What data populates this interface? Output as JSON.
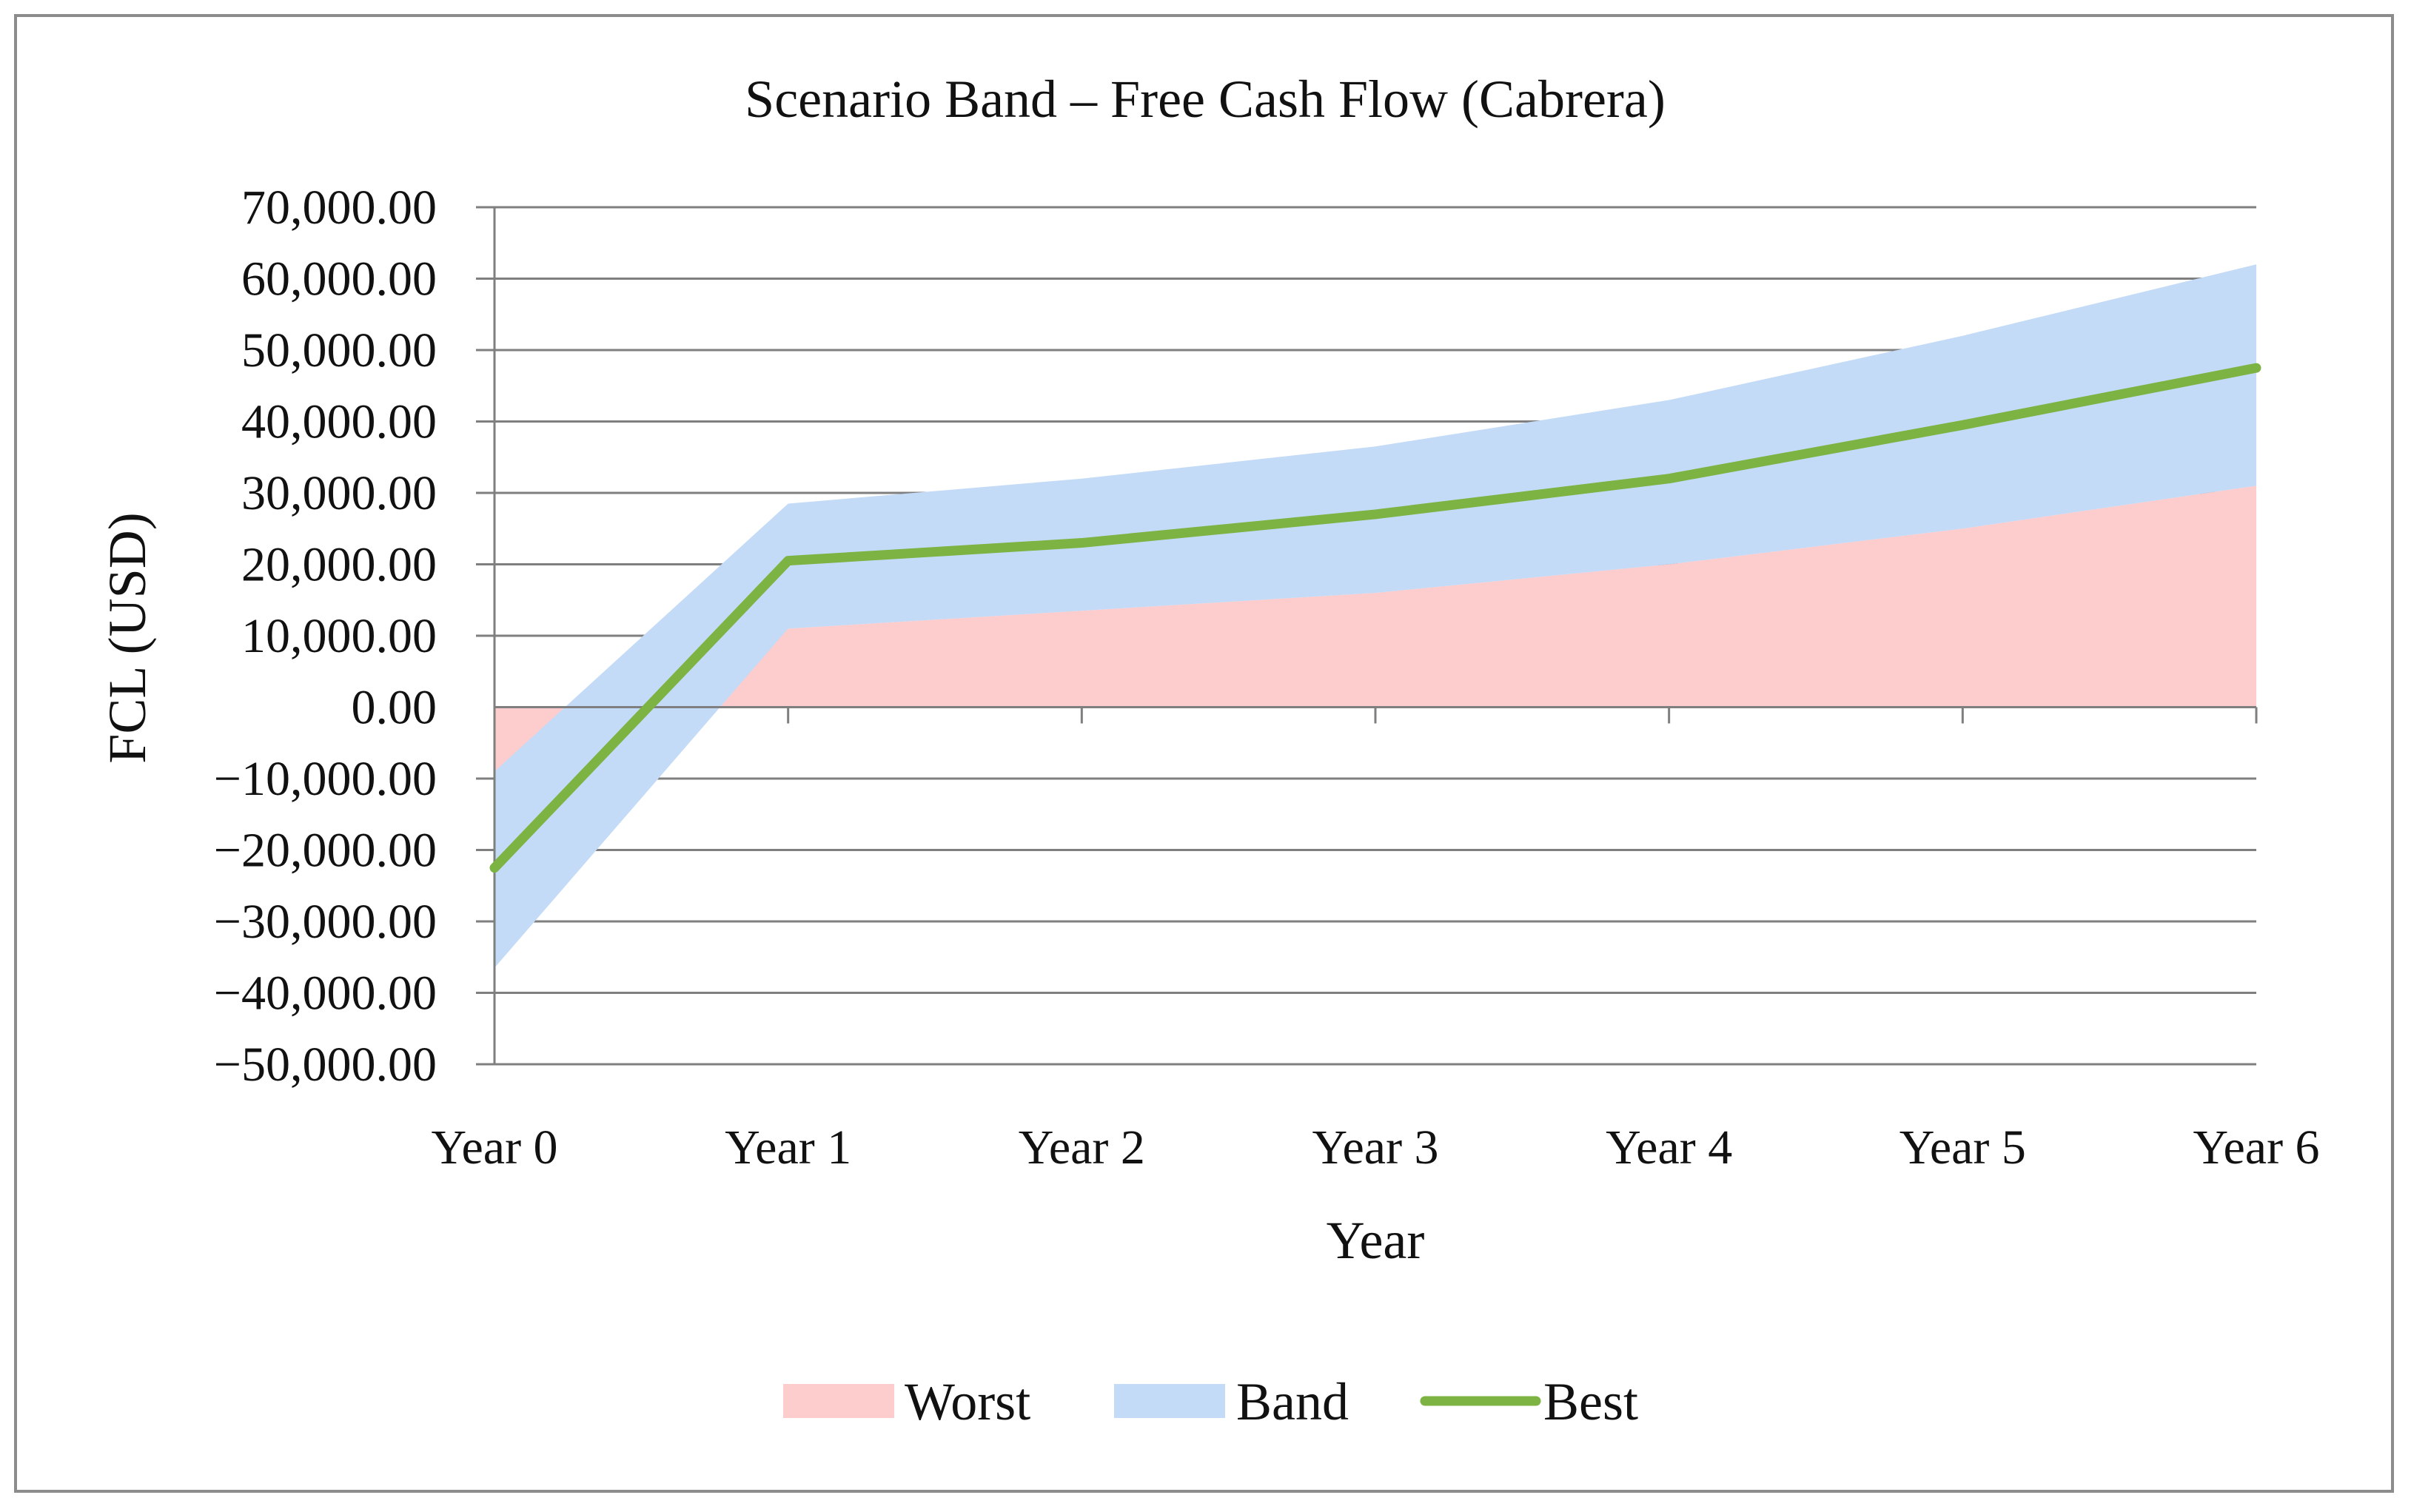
{
  "chart_data": {
    "type": "area",
    "title": "Scenario Band – Free Cash Flow (Cabrera)",
    "xlabel": "Year",
    "ylabel": "FCL (USD)",
    "categories": [
      "Year 0",
      "Year 1",
      "Year 2",
      "Year 3",
      "Year 4",
      "Year 5",
      "Year 6"
    ],
    "ylim": [
      -50000,
      70000
    ],
    "yticks": [
      70000,
      60000,
      50000,
      40000,
      30000,
      20000,
      10000,
      0,
      -10000,
      -20000,
      -30000,
      -40000,
      -50000
    ],
    "ytick_labels": [
      "70,000.00",
      "60,000.00",
      "50,000.00",
      "40,000.00",
      "30,000.00",
      "20,000.00",
      "10,000.00",
      "0.00",
      "−10,000.00",
      "−20,000.00",
      "−30,000.00",
      "−40,000.00",
      "−50,000.00"
    ],
    "grid": true,
    "legend_position": "bottom",
    "series": [
      {
        "name": "Worst",
        "kind": "area",
        "color": "#fdcccc",
        "values": [
          -9000,
          11000,
          13500,
          16000,
          20000,
          25000,
          31000
        ]
      },
      {
        "name": "Band",
        "kind": "band",
        "color": "#c4dbf7",
        "lower": [
          -36500,
          11000,
          13500,
          16000,
          20000,
          25000,
          31000
        ],
        "upper": [
          -9000,
          28500,
          32000,
          36500,
          43000,
          52000,
          62000
        ]
      },
      {
        "name": "Best",
        "kind": "line",
        "color": "#7cb342",
        "values": [
          -22500,
          20500,
          23000,
          27000,
          32000,
          39500,
          47500
        ]
      }
    ]
  }
}
